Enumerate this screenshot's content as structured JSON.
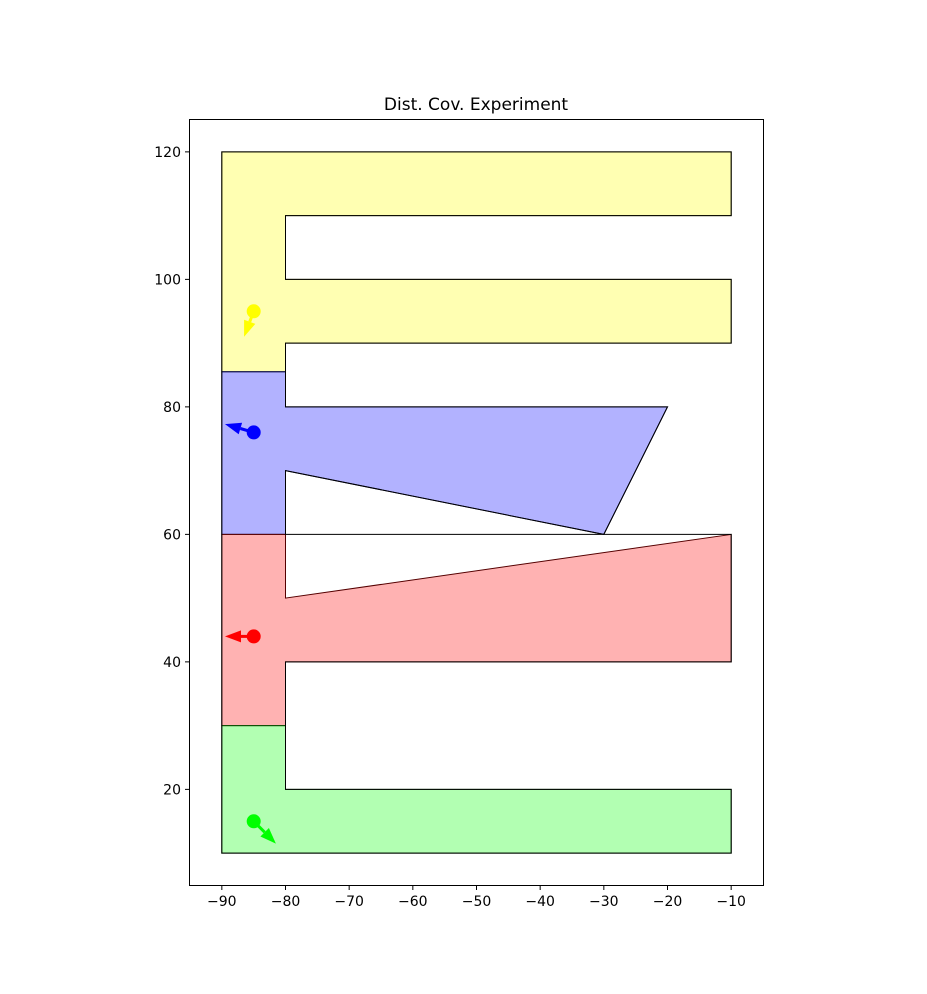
{
  "chart_data": {
    "type": "area",
    "title": "Dist. Cov. Experiment",
    "xlabel": "",
    "ylabel": "",
    "xlim": [
      -95,
      -5
    ],
    "ylim": [
      5,
      125
    ],
    "xticks": [
      -90,
      -80,
      -70,
      -60,
      -50,
      -40,
      -30,
      -20,
      -10
    ],
    "yticks": [
      20,
      40,
      60,
      80,
      100,
      120
    ],
    "xtick_labels": [
      "−90",
      "−80",
      "−70",
      "−60",
      "−50",
      "−40",
      "−30",
      "−20",
      "−10"
    ],
    "ytick_labels": [
      "20",
      "40",
      "60",
      "80",
      "100",
      "120"
    ],
    "grid": false,
    "outline": [
      [
        -90,
        120
      ],
      [
        -10,
        120
      ],
      [
        -10,
        110
      ],
      [
        -80,
        110
      ],
      [
        -80,
        100
      ],
      [
        -10,
        100
      ],
      [
        -10,
        90
      ],
      [
        -80,
        90
      ],
      [
        -80,
        80
      ],
      [
        -20,
        80
      ],
      [
        -30,
        60
      ],
      [
        -80,
        70
      ],
      [
        -80,
        60
      ],
      [
        -10,
        60
      ],
      [
        -10,
        40
      ],
      [
        -80,
        40
      ],
      [
        -80,
        30
      ],
      [
        -80,
        20
      ],
      [
        -10,
        20
      ],
      [
        -10,
        10
      ],
      [
        -90,
        10
      ]
    ],
    "regions": [
      {
        "color": "#ffff00",
        "edge": "#555500",
        "polygon": [
          [
            -90,
            120
          ],
          [
            -10,
            120
          ],
          [
            -10,
            110
          ],
          [
            -80,
            110
          ],
          [
            -80,
            100
          ],
          [
            -10,
            100
          ],
          [
            -10,
            90
          ],
          [
            -80,
            90
          ],
          [
            -80,
            85.5
          ],
          [
            -90,
            85.5
          ]
        ],
        "agent": {
          "x": -85,
          "y": 95,
          "dx": -1.5,
          "dy": -4
        }
      },
      {
        "color": "#0000ff",
        "edge": "#000055",
        "polygon": [
          [
            -90,
            85.5
          ],
          [
            -80,
            85.5
          ],
          [
            -80,
            80
          ],
          [
            -20,
            80
          ],
          [
            -30,
            60
          ],
          [
            -80,
            70
          ],
          [
            -80,
            60
          ],
          [
            -90,
            60
          ]
        ],
        "agent": {
          "x": -85,
          "y": 76,
          "dx": -4.5,
          "dy": 1.3
        }
      },
      {
        "color": "#ff0000",
        "edge": "#550000",
        "polygon": [
          [
            -90,
            60
          ],
          [
            -80,
            60
          ],
          [
            -80,
            50
          ],
          [
            -10,
            60
          ],
          [
            -10,
            40
          ],
          [
            -80,
            40
          ],
          [
            -80,
            30
          ],
          [
            -90,
            30
          ]
        ],
        "agent": {
          "x": -85,
          "y": 44,
          "dx": -4.5,
          "dy": 0
        }
      },
      {
        "color": "#00ff00",
        "edge": "#005500",
        "polygon": [
          [
            -90,
            30
          ],
          [
            -80,
            30
          ],
          [
            -80,
            20
          ],
          [
            -10,
            20
          ],
          [
            -10,
            10
          ],
          [
            -90,
            10
          ]
        ],
        "agent": {
          "x": -85,
          "y": 15,
          "dx": 3.5,
          "dy": -3.5
        }
      }
    ]
  }
}
